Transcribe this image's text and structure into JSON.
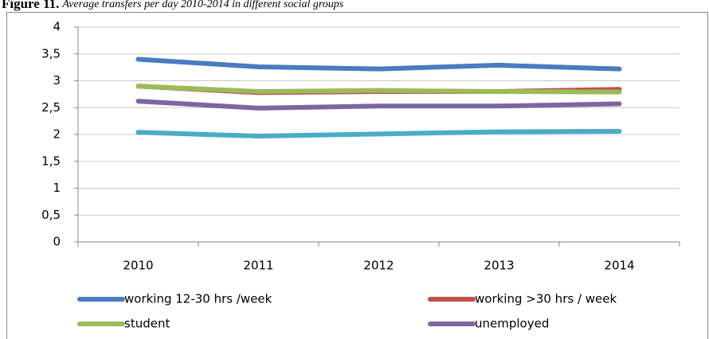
{
  "chart_data": {
    "type": "line",
    "title": "Figure 11.",
    "subtitle": "Average transfers per day 2010-2014 in different social groups",
    "categories": [
      "2010",
      "2011",
      "2012",
      "2013",
      "2014"
    ],
    "series": [
      {
        "name": "working 12-30 hrs /week",
        "color": "#4a7cc1",
        "values": [
          3.4,
          3.26,
          3.22,
          3.29,
          3.22
        ]
      },
      {
        "name": "working >30 hrs / week",
        "color": "#c0504d",
        "values": [
          2.9,
          2.78,
          2.8,
          2.8,
          2.84
        ]
      },
      {
        "name": "student",
        "color": "#9bbb59",
        "values": [
          2.9,
          2.8,
          2.82,
          2.8,
          2.79
        ]
      },
      {
        "name": "unemployed",
        "color": "#8064a2",
        "values": [
          2.62,
          2.49,
          2.53,
          2.53,
          2.57
        ]
      },
      {
        "color": "#4bacc6",
        "values": [
          2.04,
          1.97,
          2.01,
          2.05,
          2.06
        ]
      }
    ],
    "ylim": [
      0,
      4
    ],
    "yticks": [
      0,
      {
        "value": 0.5,
        "label": "0,5"
      },
      1,
      {
        "value": 1.5,
        "label": "1,5"
      },
      2,
      {
        "value": 2.5,
        "label": "2,5"
      },
      3,
      {
        "value": 3.5,
        "label": "3,5"
      },
      4
    ],
    "grid": true
  }
}
